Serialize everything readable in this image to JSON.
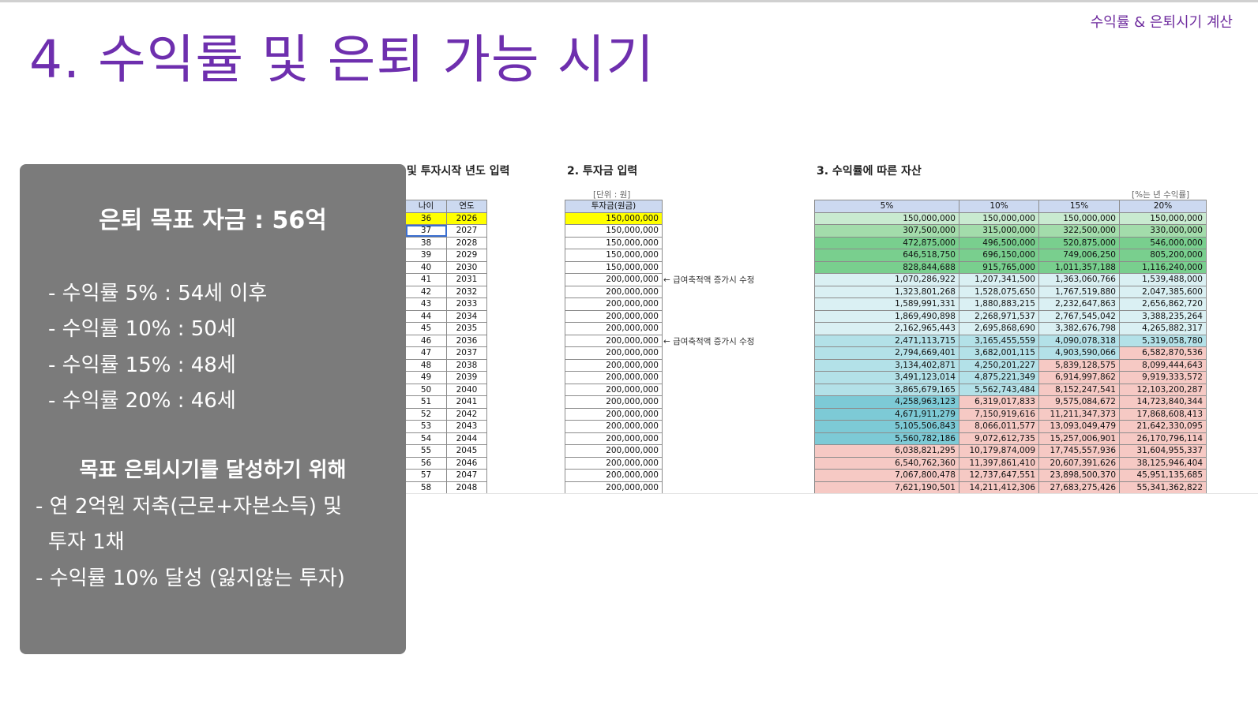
{
  "header": {
    "title": "4. 수익률 및 은퇴 가능 시기",
    "top_right": "수익률 & 은퇴시기 계산"
  },
  "summary_panel": {
    "title": "은퇴 목표 자금 : 56억",
    "lines": [
      "- 수익률   5% : 54세 이후",
      "- 수익률 10% : 50세",
      "- 수익률 15% : 48세",
      "- 수익률 20% : 46세"
    ],
    "subtitle": "목표 은퇴시기를 달성하기 위해",
    "goals": [
      "- 연 2억원 저축(근로+자본소득) 및",
      "  투자 1채",
      "- 수익률 10% 달성 (잃지않는 투자)"
    ]
  },
  "sheet": {
    "section1_title": "및 투자시작 년도 입력",
    "section2_title": "2. 투자금 입력",
    "section3_title": "3. 수익률에 따른 자산",
    "unit_label": "[단위 : 원]",
    "rate_label": "[%는 년 수익률]",
    "age_headers": [
      "나이",
      "연도"
    ],
    "invest_header": "투자금(원금)",
    "return_headers": [
      "5%",
      "10%",
      "15%",
      "20%"
    ],
    "note_text": "← 급여축적액 증가시 수정",
    "rows": [
      {
        "age": "36",
        "year": "2026",
        "invest": "150,000,000",
        "r5": "150,000,000",
        "r10": "150,000,000",
        "r15": "150,000,000",
        "r20": "150,000,000"
      },
      {
        "age": "37",
        "year": "2027",
        "invest": "150,000,000",
        "r5": "307,500,000",
        "r10": "315,000,000",
        "r15": "322,500,000",
        "r20": "330,000,000"
      },
      {
        "age": "38",
        "year": "2028",
        "invest": "150,000,000",
        "r5": "472,875,000",
        "r10": "496,500,000",
        "r15": "520,875,000",
        "r20": "546,000,000"
      },
      {
        "age": "39",
        "year": "2029",
        "invest": "150,000,000",
        "r5": "646,518,750",
        "r10": "696,150,000",
        "r15": "749,006,250",
        "r20": "805,200,000"
      },
      {
        "age": "40",
        "year": "2030",
        "invest": "150,000,000",
        "r5": "828,844,688",
        "r10": "915,765,000",
        "r15": "1,011,357,188",
        "r20": "1,116,240,000"
      },
      {
        "age": "41",
        "year": "2031",
        "invest": "200,000,000",
        "r5": "1,070,286,922",
        "r10": "1,207,341,500",
        "r15": "1,363,060,766",
        "r20": "1,539,488,000"
      },
      {
        "age": "42",
        "year": "2032",
        "invest": "200,000,000",
        "r5": "1,323,801,268",
        "r10": "1,528,075,650",
        "r15": "1,767,519,880",
        "r20": "2,047,385,600"
      },
      {
        "age": "43",
        "year": "2033",
        "invest": "200,000,000",
        "r5": "1,589,991,331",
        "r10": "1,880,883,215",
        "r15": "2,232,647,863",
        "r20": "2,656,862,720"
      },
      {
        "age": "44",
        "year": "2034",
        "invest": "200,000,000",
        "r5": "1,869,490,898",
        "r10": "2,268,971,537",
        "r15": "2,767,545,042",
        "r20": "3,388,235,264"
      },
      {
        "age": "45",
        "year": "2035",
        "invest": "200,000,000",
        "r5": "2,162,965,443",
        "r10": "2,695,868,690",
        "r15": "3,382,676,798",
        "r20": "4,265,882,317"
      },
      {
        "age": "46",
        "year": "2036",
        "invest": "200,000,000",
        "r5": "2,471,113,715",
        "r10": "3,165,455,559",
        "r15": "4,090,078,318",
        "r20": "5,319,058,780"
      },
      {
        "age": "47",
        "year": "2037",
        "invest": "200,000,000",
        "r5": "2,794,669,401",
        "r10": "3,682,001,115",
        "r15": "4,903,590,066",
        "r20": "6,582,870,536"
      },
      {
        "age": "48",
        "year": "2038",
        "invest": "200,000,000",
        "r5": "3,134,402,871",
        "r10": "4,250,201,227",
        "r15": "5,839,128,575",
        "r20": "8,099,444,643"
      },
      {
        "age": "49",
        "year": "2039",
        "invest": "200,000,000",
        "r5": "3,491,123,014",
        "r10": "4,875,221,349",
        "r15": "6,914,997,862",
        "r20": "9,919,333,572"
      },
      {
        "age": "50",
        "year": "2040",
        "invest": "200,000,000",
        "r5": "3,865,679,165",
        "r10": "5,562,743,484",
        "r15": "8,152,247,541",
        "r20": "12,103,200,287"
      },
      {
        "age": "51",
        "year": "2041",
        "invest": "200,000,000",
        "r5": "4,258,963,123",
        "r10": "6,319,017,833",
        "r15": "9,575,084,672",
        "r20": "14,723,840,344"
      },
      {
        "age": "52",
        "year": "2042",
        "invest": "200,000,000",
        "r5": "4,671,911,279",
        "r10": "7,150,919,616",
        "r15": "11,211,347,373",
        "r20": "17,868,608,413"
      },
      {
        "age": "53",
        "year": "2043",
        "invest": "200,000,000",
        "r5": "5,105,506,843",
        "r10": "8,066,011,577",
        "r15": "13,093,049,479",
        "r20": "21,642,330,095"
      },
      {
        "age": "54",
        "year": "2044",
        "invest": "200,000,000",
        "r5": "5,560,782,186",
        "r10": "9,072,612,735",
        "r15": "15,257,006,901",
        "r20": "26,170,796,114"
      },
      {
        "age": "55",
        "year": "2045",
        "invest": "200,000,000",
        "r5": "6,038,821,295",
        "r10": "10,179,874,009",
        "r15": "17,745,557,936",
        "r20": "31,604,955,337"
      },
      {
        "age": "56",
        "year": "2046",
        "invest": "200,000,000",
        "r5": "6,540,762,360",
        "r10": "11,397,861,410",
        "r15": "20,607,391,626",
        "r20": "38,125,946,404"
      },
      {
        "age": "57",
        "year": "2047",
        "invest": "200,000,000",
        "r5": "7,067,800,478",
        "r10": "12,737,647,551",
        "r15": "23,898,500,370",
        "r20": "45,951,135,685"
      },
      {
        "age": "58",
        "year": "2048",
        "invest": "200,000,000",
        "r5": "7,621,190,501",
        "r10": "14,211,412,306",
        "r15": "27,683,275,426",
        "r20": "55,341,362,822"
      }
    ],
    "colors": {
      "green_dark": "#79cf8e",
      "green_mid": "#a3dcab",
      "green_light": "#c9ead0",
      "teal_light": "#daf0f3",
      "teal_mid": "#b3e1e8",
      "teal_dark": "#7dcad6",
      "pink": "#f6c9c4",
      "header_blue": "#ccd9f0",
      "yellow": "#ffff00"
    }
  }
}
